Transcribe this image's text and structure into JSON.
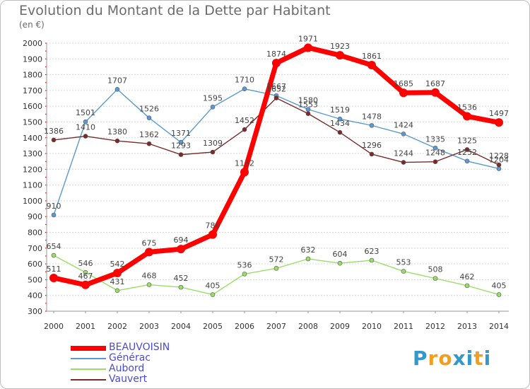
{
  "title": "Evolution du Montant de la Dette par Habitant",
  "subtitle": "(en €)",
  "chart_data": {
    "type": "line",
    "x": [
      2000,
      2001,
      2002,
      2003,
      2004,
      2005,
      2006,
      2007,
      2008,
      2009,
      2010,
      2011,
      2012,
      2013,
      2014
    ],
    "ylim": [
      300,
      2000
    ],
    "yticks": [
      300,
      400,
      500,
      600,
      700,
      800,
      900,
      1000,
      1100,
      1200,
      1300,
      1400,
      1500,
      1600,
      1700,
      1800,
      1900,
      2000
    ],
    "grid": "horizontal",
    "legend_position": "bottom-left",
    "series": [
      {
        "name": "BEAUVOISIN",
        "color": "#ff0000",
        "values": [
          511,
          467,
          542,
          675,
          694,
          786,
          1182,
          1874,
          1971,
          1923,
          1861,
          1685,
          1687,
          1536,
          1497
        ]
      },
      {
        "name": "Générac",
        "color": "#5a9ad0",
        "values": [
          910,
          1501,
          1707,
          1526,
          1371,
          1595,
          1710,
          1667,
          1580,
          1519,
          1478,
          1424,
          1335,
          1252,
          1204
        ]
      },
      {
        "name": "Aubord",
        "color": "#99dd66",
        "values": [
          654,
          546,
          431,
          468,
          452,
          405,
          536,
          572,
          632,
          604,
          623,
          553,
          508,
          462,
          405
        ]
      },
      {
        "name": "Vauvert",
        "color": "#7a2a2a",
        "values": [
          1386,
          1410,
          1380,
          1362,
          1293,
          1309,
          1452,
          1652,
          1553,
          1434,
          1296,
          1244,
          1248,
          1325,
          1228
        ]
      }
    ]
  },
  "logo": {
    "letters": [
      "P",
      "r",
      "o",
      "x",
      "i",
      "t",
      "i"
    ],
    "colors": [
      "#3399cc",
      "#f0a020",
      "#f0a020",
      "#3399cc",
      "#3399cc",
      "#f0a020",
      "#3399cc"
    ]
  }
}
